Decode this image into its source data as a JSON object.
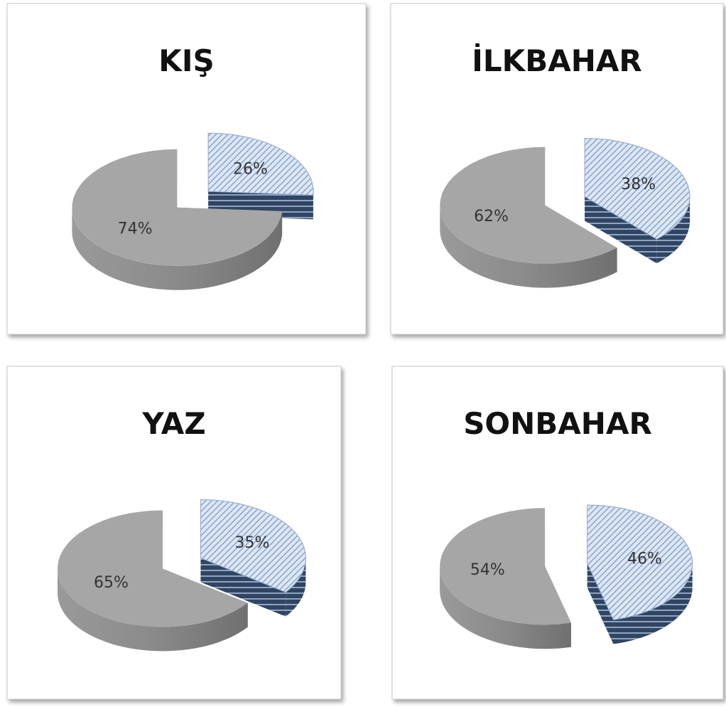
{
  "chart_data": [
    {
      "type": "pie",
      "title": "KIŞ",
      "values": [
        26,
        74
      ],
      "value_labels": [
        "26%",
        "74%"
      ],
      "colors": [
        "#c5d9f1",
        "#a6a6a6"
      ]
    },
    {
      "type": "pie",
      "title": "İLKBAHAR",
      "values": [
        38,
        62
      ],
      "value_labels": [
        "38%",
        "62%"
      ],
      "colors": [
        "#c5d9f1",
        "#a6a6a6"
      ]
    },
    {
      "type": "pie",
      "title": "YAZ",
      "values": [
        35,
        65
      ],
      "value_labels": [
        "35%",
        "65%"
      ],
      "colors": [
        "#c5d9f1",
        "#a6a6a6"
      ]
    },
    {
      "type": "pie",
      "title": "SONBAHAR",
      "values": [
        46,
        54
      ],
      "value_labels": [
        "46%",
        "54%"
      ],
      "colors": [
        "#c5d9f1",
        "#a6a6a6"
      ]
    }
  ]
}
